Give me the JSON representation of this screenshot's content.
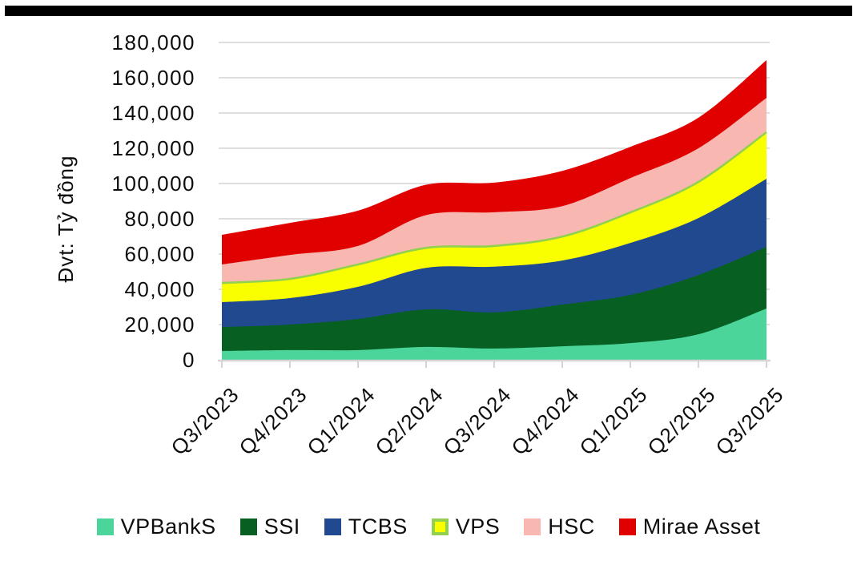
{
  "page": {
    "background_color": "#ffffff",
    "top_bar_color": "#000000"
  },
  "chart_data": {
    "type": "area",
    "stacked": true,
    "title": "",
    "xlabel": "",
    "ylabel": "Đvt: Tỷ đồng",
    "ylim": [
      0,
      180000
    ],
    "ytick_step": 20000,
    "ytick_labels": [
      "0",
      "20,000",
      "40,000",
      "60,000",
      "80,000",
      "100,000",
      "120,000",
      "140,000",
      "160,000",
      "180,000"
    ],
    "grid": true,
    "gridline_color": "#dadada",
    "axis_line_color": "#d6d4d4",
    "legend_position": "bottom",
    "categories": [
      "Q3/2023",
      "Q4/2023",
      "Q1/2024",
      "Q2/2024",
      "Q3/2024",
      "Q4/2024",
      "Q1/2025",
      "Q2/2025",
      "Q3/2025"
    ],
    "series": [
      {
        "name": "VPBankS",
        "color": "#4bd59b",
        "values": [
          5000,
          5500,
          5500,
          7300,
          6400,
          7700,
          9500,
          14500,
          29100
        ]
      },
      {
        "name": "SSI",
        "color": "#075f22",
        "values": [
          13600,
          14500,
          17700,
          21300,
          20500,
          23600,
          27300,
          33600,
          35000
        ]
      },
      {
        "name": "TCBS",
        "color": "#20498f",
        "values": [
          14100,
          15000,
          18200,
          23600,
          25900,
          25000,
          29500,
          32300,
          38600
        ]
      },
      {
        "name": "VPS",
        "color": "#faff00",
        "border_color": "#92d050",
        "values": [
          10900,
          10900,
          12700,
          11300,
          11800,
          13600,
          17300,
          20500,
          26400
        ]
      },
      {
        "name": "HSC",
        "color": "#f8b7b1",
        "values": [
          10500,
          13600,
          10500,
          18600,
          19100,
          17300,
          19500,
          19100,
          19500
        ]
      },
      {
        "name": "Mirae Asset",
        "color": "#e00000",
        "values": [
          16800,
          18200,
          20000,
          17200,
          16800,
          20000,
          17700,
          17300,
          21400
        ]
      }
    ]
  }
}
